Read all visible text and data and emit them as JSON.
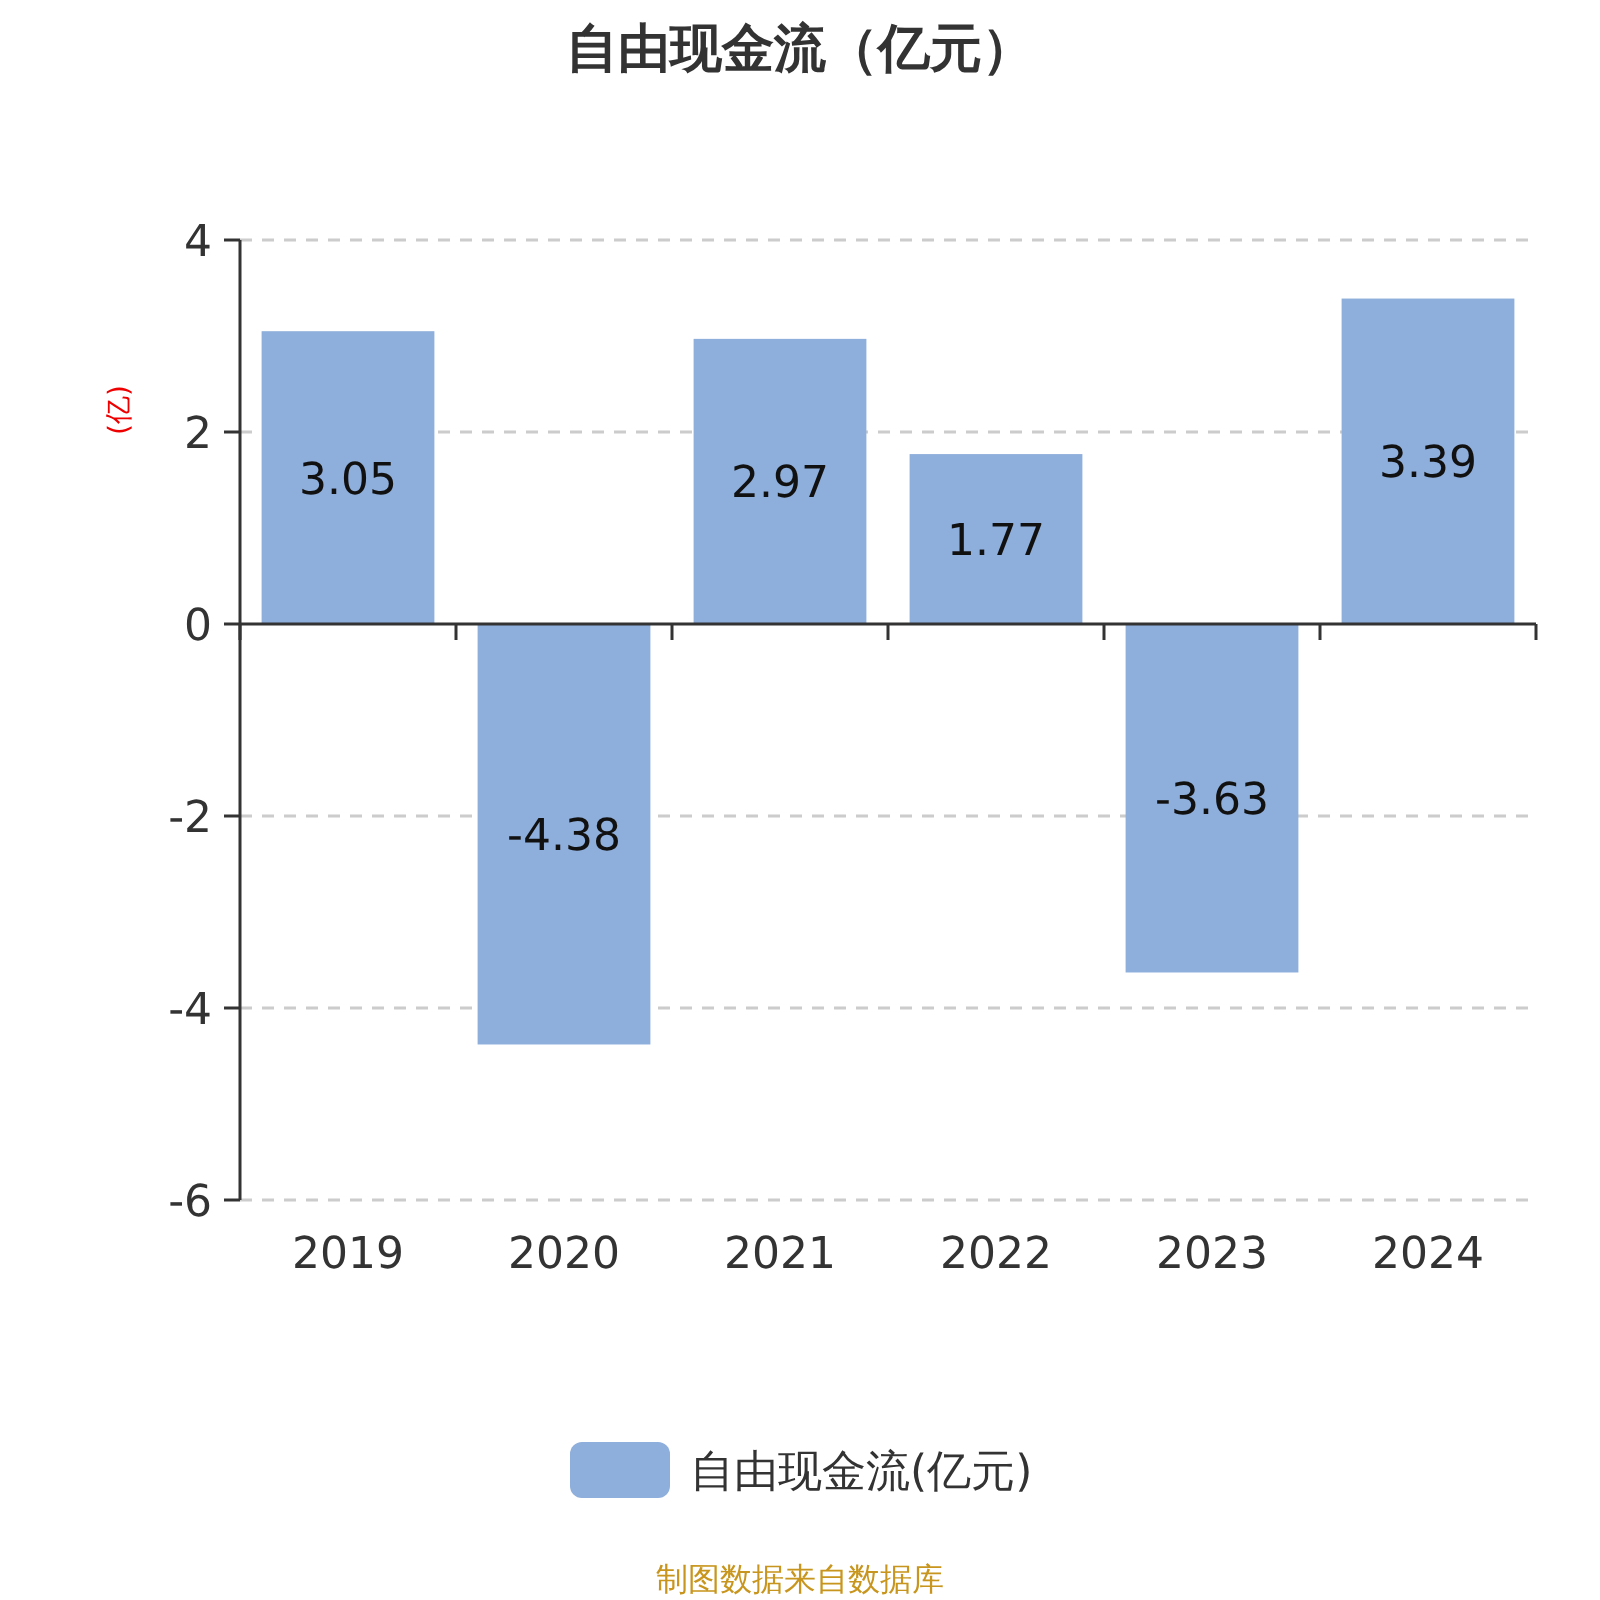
{
  "chart_data": {
    "type": "bar",
    "title": "自由现金流（亿元）",
    "ylabel": "(亿)",
    "categories": [
      "2019",
      "2020",
      "2021",
      "2022",
      "2023",
      "2024"
    ],
    "series": [
      {
        "name": "自由现金流(亿元)",
        "color": "#8eaedb",
        "values": [
          3.05,
          -4.38,
          2.97,
          1.77,
          -3.63,
          3.39
        ]
      }
    ],
    "ylim": [
      -6,
      4
    ],
    "yticks": [
      -6,
      -4,
      -2,
      0,
      2,
      4
    ],
    "grid": "y",
    "legend": "bottom",
    "data_labels": true,
    "annotations": [
      "制图数据来自数据库"
    ]
  }
}
